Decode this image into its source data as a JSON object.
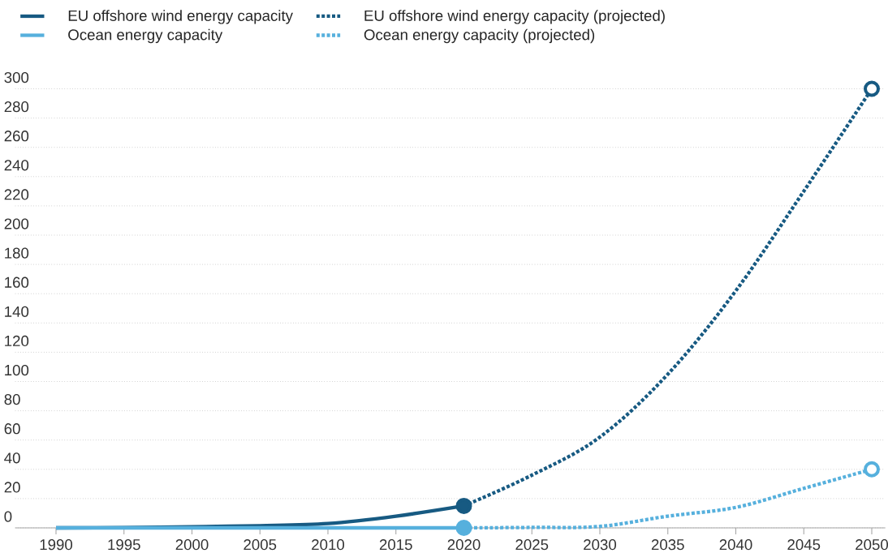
{
  "chart_data": {
    "type": "line",
    "xlim": [
      1987,
      2051
    ],
    "ylim": [
      0,
      300
    ],
    "xticks": [
      1990,
      1995,
      2000,
      2005,
      2010,
      2015,
      2020,
      2025,
      2030,
      2035,
      2040,
      2045,
      2050
    ],
    "yticks": [
      0,
      20,
      40,
      60,
      80,
      100,
      120,
      140,
      160,
      180,
      200,
      220,
      240,
      260,
      280,
      300
    ],
    "grid": "y",
    "legend": "top left",
    "series": [
      {
        "name": "EU offshore wind energy capacity",
        "color": "#175a82",
        "line_style": "solid",
        "x": [
          1990,
          1995,
          2000,
          2005,
          2010,
          2015,
          2020
        ],
        "values": [
          0,
          0.2,
          0.8,
          1.5,
          3,
          8,
          15
        ]
      },
      {
        "name": "EU offshore wind energy capacity (projected)",
        "color": "#175a82",
        "line_style": "dotted",
        "x": [
          2020,
          2025,
          2030,
          2035,
          2040,
          2045,
          2050
        ],
        "values": [
          15,
          36,
          62,
          105,
          162,
          230,
          300
        ]
      },
      {
        "name": "Ocean energy capacity",
        "color": "#56b0dd",
        "line_style": "solid",
        "x": [
          1990,
          2000,
          2010,
          2020
        ],
        "values": [
          0,
          0,
          0,
          0
        ]
      },
      {
        "name": "Ocean energy capacity (projected)",
        "color": "#56b0dd",
        "line_style": "dotted",
        "x": [
          2020,
          2025,
          2030,
          2035,
          2040,
          2045,
          2050
        ],
        "values": [
          0,
          0.3,
          1,
          8,
          14,
          27,
          40
        ]
      },
      {
        "type": "scatter",
        "marker": "circle",
        "x": [
          2020,
          2020
        ],
        "values": [
          15,
          0
        ],
        "colors": [
          "#175a82",
          "#56b0dd"
        ]
      },
      {
        "type": "scatter",
        "marker": "circle",
        "x": [
          2050,
          2050
        ],
        "values": [
          300,
          40
        ],
        "colors": [
          "#175a82",
          "#56b0dd"
        ]
      }
    ]
  }
}
